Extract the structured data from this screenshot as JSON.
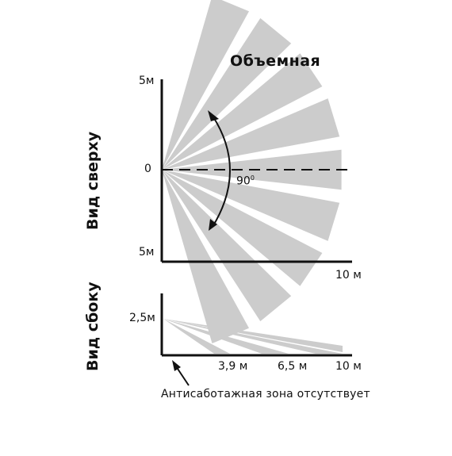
{
  "title": "Объемная",
  "top_view": {
    "label": "Вид сверху",
    "y_top": "5м",
    "y_mid": "0",
    "y_bottom": "5м",
    "x_end": "10 м",
    "angle": "90",
    "angle_unit": "0"
  },
  "side_view": {
    "label": "Вид сбоку",
    "height": "2,5м",
    "ticks": [
      "3,9 м",
      "6,5 м",
      "10 м"
    ]
  },
  "note": "Антисаботажная зона отсутствует",
  "colors": {
    "beam": "#cccccc",
    "axis": "#111111"
  }
}
